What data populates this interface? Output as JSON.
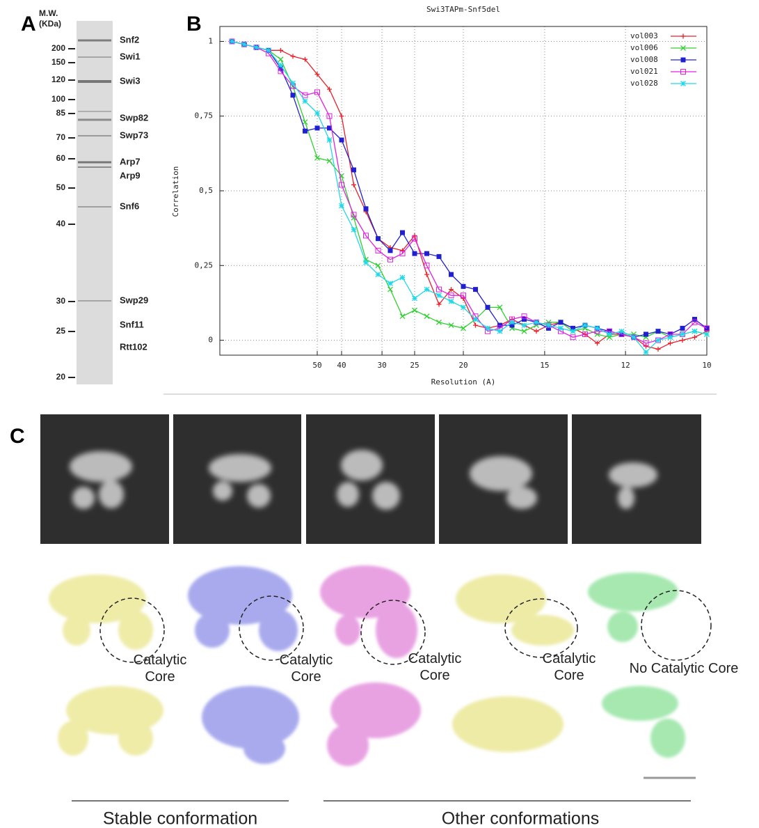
{
  "panel_a": {
    "label": "A",
    "header": "M.W. (KDa)",
    "mw_markers": [
      200,
      150,
      120,
      100,
      85,
      70,
      60,
      50,
      40,
      30,
      25,
      20
    ],
    "proteins": [
      "Snf2",
      "Swi1",
      "Swi3",
      "Swp82",
      "Swp73",
      "Arp7",
      "Arp9",
      "Snf6",
      "Swp29",
      "Snf11",
      "Rtt102"
    ]
  },
  "chart_data": {
    "type": "line",
    "panel_label": "B",
    "title": "Swi3TAPm-Snf5del",
    "x_label": "Resolution (A)",
    "y_label": "Correlation",
    "x": [
      0.0025,
      0.005,
      0.0075,
      0.01,
      0.0125,
      0.015,
      0.0175,
      0.02,
      0.0225,
      0.025,
      0.0275,
      0.03,
      0.0325,
      0.035,
      0.0375,
      0.04,
      0.0425,
      0.045,
      0.0475,
      0.05,
      0.0525,
      0.055,
      0.0575,
      0.06,
      0.0625,
      0.065,
      0.0675,
      0.07,
      0.0725,
      0.075,
      0.0775,
      0.08,
      0.0825,
      0.085,
      0.0875,
      0.09,
      0.0925,
      0.095,
      0.0975,
      0.1
    ],
    "xlim": [
      0,
      0.1
    ],
    "ylim": [
      -0.05,
      1.05
    ],
    "xticks": [
      {
        "value": 0.02,
        "label": "50"
      },
      {
        "value": 0.025,
        "label": "40"
      },
      {
        "value": 0.0333,
        "label": "30"
      },
      {
        "value": 0.04,
        "label": "25"
      },
      {
        "value": 0.05,
        "label": "20"
      },
      {
        "value": 0.0667,
        "label": "15"
      },
      {
        "value": 0.0833,
        "label": "12"
      },
      {
        "value": 0.1,
        "label": "10"
      }
    ],
    "yticks": [
      0,
      {
        "value": 0.25,
        "label": "0,25"
      },
      {
        "value": 0.5,
        "label": "0,5"
      },
      {
        "value": 0.75,
        "label": "0,75"
      },
      1
    ],
    "grid": true,
    "legend": "top-right",
    "series": [
      {
        "name": "vol003",
        "color": "#e8202a",
        "marker": "plus",
        "values": [
          1,
          0.99,
          0.98,
          0.97,
          0.97,
          0.95,
          0.94,
          0.89,
          0.84,
          0.75,
          0.52,
          0.43,
          0.34,
          0.31,
          0.3,
          0.35,
          0.22,
          0.12,
          0.17,
          0.14,
          0.05,
          0.04,
          0.05,
          0.07,
          0.05,
          0.03,
          0.05,
          0.06,
          0.04,
          0.02,
          -0.01,
          0.02,
          0.02,
          0.01,
          -0.02,
          -0.03,
          -0.01,
          0.0,
          0.01,
          0.03
        ]
      },
      {
        "name": "vol006",
        "color": "#30d030",
        "marker": "cross",
        "values": [
          1,
          0.99,
          0.98,
          0.97,
          0.94,
          0.85,
          0.73,
          0.61,
          0.6,
          0.55,
          0.41,
          0.27,
          0.25,
          0.17,
          0.08,
          0.1,
          0.08,
          0.06,
          0.05,
          0.04,
          0.07,
          0.11,
          0.11,
          0.04,
          0.03,
          0.05,
          0.06,
          0.06,
          0.03,
          0.04,
          0.02,
          0.01,
          0.02,
          0.02,
          0.01,
          0.03,
          0.01,
          0.02,
          0.03,
          0.02
        ]
      },
      {
        "name": "vol008",
        "color": "#2020d0",
        "marker": "filled-square",
        "values": [
          1,
          0.99,
          0.98,
          0.97,
          0.91,
          0.82,
          0.7,
          0.71,
          0.71,
          0.67,
          0.57,
          0.44,
          0.34,
          0.3,
          0.36,
          0.29,
          0.29,
          0.28,
          0.22,
          0.18,
          0.17,
          0.11,
          0.05,
          0.05,
          0.07,
          0.06,
          0.04,
          0.06,
          0.04,
          0.05,
          0.04,
          0.03,
          0.02,
          0.01,
          0.02,
          0.03,
          0.02,
          0.04,
          0.07,
          0.04
        ]
      },
      {
        "name": "vol021",
        "color": "#e020e0",
        "marker": "open-square",
        "values": [
          1,
          0.99,
          0.98,
          0.96,
          0.9,
          0.85,
          0.82,
          0.83,
          0.75,
          0.52,
          0.42,
          0.35,
          0.3,
          0.27,
          0.29,
          0.34,
          0.25,
          0.17,
          0.15,
          0.15,
          0.08,
          0.03,
          0.04,
          0.07,
          0.08,
          0.06,
          0.05,
          0.03,
          0.01,
          0.02,
          0.03,
          0.03,
          0.02,
          0.01,
          -0.01,
          0.0,
          0.02,
          0.02,
          0.06,
          0.04
        ]
      },
      {
        "name": "vol028",
        "color": "#20d8e8",
        "marker": "star",
        "values": [
          1,
          0.99,
          0.98,
          0.97,
          0.92,
          0.86,
          0.8,
          0.76,
          0.67,
          0.45,
          0.37,
          0.26,
          0.22,
          0.19,
          0.21,
          0.14,
          0.17,
          0.15,
          0.13,
          0.11,
          0.07,
          0.04,
          0.03,
          0.06,
          0.05,
          0.06,
          0.05,
          0.04,
          0.03,
          0.05,
          0.04,
          0.02,
          0.03,
          0.01,
          -0.04,
          0.0,
          0.01,
          0.02,
          0.03,
          0.02
        ]
      }
    ]
  },
  "panel_c": {
    "label": "C",
    "annotations": [
      "Catalytic Core",
      "Catalytic Core",
      "Catalytic Core",
      "Catalytic Core",
      "No Catalytic Core"
    ],
    "groups": [
      "Stable conformation",
      "Other conformations"
    ]
  }
}
